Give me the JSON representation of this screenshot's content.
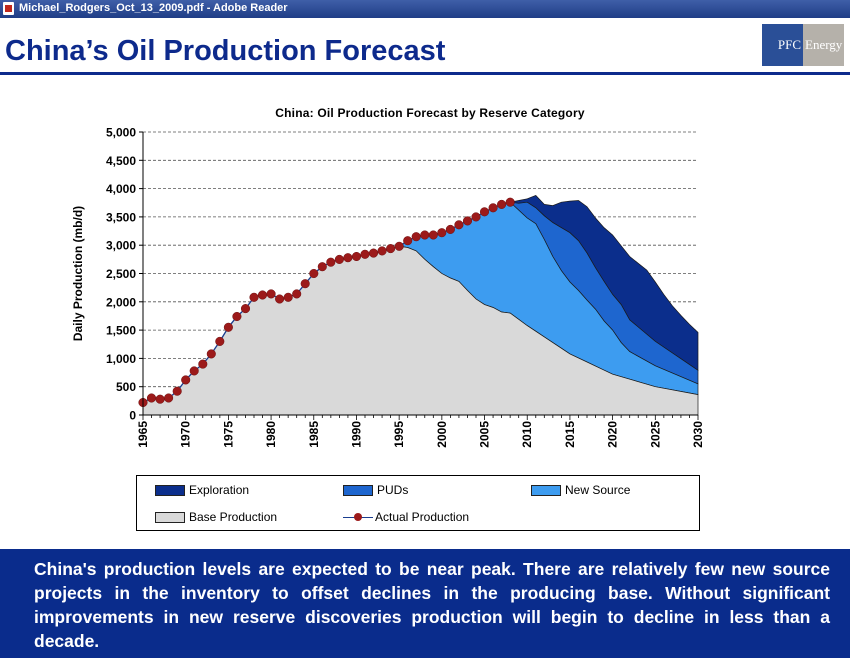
{
  "window": {
    "title": "Michael_Rodgers_Oct_13_2009.pdf - Adobe Reader",
    "icon": "pdf-icon"
  },
  "slide": {
    "title": "China’s Oil Production Forecast",
    "logo": {
      "left": "PFC",
      "right": "Energy"
    },
    "summary": "China's production levels are expected to be near peak. There are relatively few new source projects in the inventory to offset declines in the producing base. Without significant improvements in new reserve discoveries production will begin to decline in less than a decade."
  },
  "chart_data": {
    "type": "area",
    "title": "China: Oil Production Forecast by Reserve Category",
    "ylabel": "Daily Production (mb/d)",
    "xlabel": "",
    "xlim": [
      1965,
      2030
    ],
    "ylim": [
      0,
      5000
    ],
    "yticks": [
      "0",
      "500",
      "1,000",
      "1,500",
      "2,000",
      "2,500",
      "3,000",
      "3,500",
      "4,000",
      "4,500",
      "5,000"
    ],
    "xticks": [
      "1965",
      "1970",
      "1975",
      "1980",
      "1985",
      "1990",
      "1995",
      "2000",
      "2005",
      "2010",
      "2015",
      "2020",
      "2025",
      "2030"
    ],
    "grid": "horizontal dashed",
    "colors": {
      "exploration": "#0b2e8c",
      "puds": "#1e66cf",
      "new_source": "#3d9cf0",
      "base": "#d9d9d9",
      "actual_line": "#1a3d8f",
      "actual_marker": "#9c1a1a"
    },
    "legend": [
      {
        "key": "exploration",
        "label": "Exploration"
      },
      {
        "key": "puds",
        "label": "PUDs"
      },
      {
        "key": "new_source",
        "label": "New Source"
      },
      {
        "key": "base",
        "label": "Base Production"
      },
      {
        "key": "actual",
        "label": "Actual Production"
      }
    ],
    "series": [
      {
        "name": "Base Production",
        "points": [
          [
            1965,
            220
          ],
          [
            1966,
            300
          ],
          [
            1967,
            280
          ],
          [
            1968,
            300
          ],
          [
            1969,
            420
          ],
          [
            1970,
            620
          ],
          [
            1971,
            780
          ],
          [
            1972,
            900
          ],
          [
            1973,
            1080
          ],
          [
            1974,
            1300
          ],
          [
            1975,
            1550
          ],
          [
            1976,
            1740
          ],
          [
            1977,
            1880
          ],
          [
            1978,
            2080
          ],
          [
            1979,
            2120
          ],
          [
            1980,
            2140
          ],
          [
            1981,
            2050
          ],
          [
            1982,
            2080
          ],
          [
            1983,
            2140
          ],
          [
            1984,
            2320
          ],
          [
            1985,
            2500
          ],
          [
            1986,
            2620
          ],
          [
            1987,
            2700
          ],
          [
            1988,
            2750
          ],
          [
            1989,
            2780
          ],
          [
            1990,
            2800
          ],
          [
            1991,
            2840
          ],
          [
            1992,
            2860
          ],
          [
            1993,
            2900
          ],
          [
            1994,
            2940
          ],
          [
            1995,
            2980
          ],
          [
            1996,
            2960
          ],
          [
            1997,
            2900
          ],
          [
            1998,
            2750
          ],
          [
            1999,
            2620
          ],
          [
            2000,
            2500
          ],
          [
            2001,
            2420
          ],
          [
            2002,
            2360
          ],
          [
            2003,
            2200
          ],
          [
            2004,
            2050
          ],
          [
            2005,
            1950
          ],
          [
            2006,
            1900
          ],
          [
            2007,
            1820
          ],
          [
            2008,
            1800
          ],
          [
            2010,
            1580
          ],
          [
            2015,
            1080
          ],
          [
            2020,
            720
          ],
          [
            2025,
            500
          ],
          [
            2030,
            360
          ]
        ]
      },
      {
        "name": "New Source",
        "points": [
          [
            1995,
            2980
          ],
          [
            1996,
            3080
          ],
          [
            1997,
            3150
          ],
          [
            1998,
            3180
          ],
          [
            1999,
            3180
          ],
          [
            2000,
            3220
          ],
          [
            2001,
            3280
          ],
          [
            2002,
            3360
          ],
          [
            2003,
            3430
          ],
          [
            2004,
            3500
          ],
          [
            2005,
            3590
          ],
          [
            2006,
            3660
          ],
          [
            2007,
            3720
          ],
          [
            2008,
            3760
          ],
          [
            2009,
            3620
          ],
          [
            2010,
            3480
          ],
          [
            2011,
            3380
          ],
          [
            2012,
            3100
          ],
          [
            2013,
            2800
          ],
          [
            2014,
            2550
          ],
          [
            2015,
            2350
          ],
          [
            2016,
            2200
          ],
          [
            2017,
            2030
          ],
          [
            2018,
            1870
          ],
          [
            2019,
            1660
          ],
          [
            2020,
            1500
          ],
          [
            2021,
            1280
          ],
          [
            2022,
            1120
          ],
          [
            2025,
            870
          ],
          [
            2030,
            550
          ]
        ]
      },
      {
        "name": "PUDs",
        "points": [
          [
            2008,
            3760
          ],
          [
            2009,
            3740
          ],
          [
            2010,
            3760
          ],
          [
            2011,
            3660
          ],
          [
            2012,
            3520
          ],
          [
            2013,
            3400
          ],
          [
            2014,
            3310
          ],
          [
            2015,
            3220
          ],
          [
            2016,
            3080
          ],
          [
            2017,
            2860
          ],
          [
            2018,
            2600
          ],
          [
            2019,
            2360
          ],
          [
            2020,
            2130
          ],
          [
            2021,
            1950
          ],
          [
            2022,
            1680
          ],
          [
            2025,
            1300
          ],
          [
            2030,
            790
          ]
        ]
      },
      {
        "name": "Exploration",
        "points": [
          [
            2008,
            3760
          ],
          [
            2009,
            3790
          ],
          [
            2010,
            3820
          ],
          [
            2011,
            3880
          ],
          [
            2012,
            3720
          ],
          [
            2013,
            3700
          ],
          [
            2014,
            3760
          ],
          [
            2015,
            3780
          ],
          [
            2016,
            3790
          ],
          [
            2017,
            3680
          ],
          [
            2018,
            3480
          ],
          [
            2019,
            3310
          ],
          [
            2020,
            3180
          ],
          [
            2021,
            2990
          ],
          [
            2022,
            2800
          ],
          [
            2023,
            2680
          ],
          [
            2024,
            2560
          ],
          [
            2025,
            2350
          ],
          [
            2026,
            2130
          ],
          [
            2027,
            1930
          ],
          [
            2028,
            1760
          ],
          [
            2029,
            1600
          ],
          [
            2030,
            1460
          ]
        ]
      },
      {
        "name": "Actual Production",
        "points": [
          [
            1965,
            220
          ],
          [
            1966,
            300
          ],
          [
            1967,
            280
          ],
          [
            1968,
            300
          ],
          [
            1969,
            420
          ],
          [
            1970,
            620
          ],
          [
            1971,
            780
          ],
          [
            1972,
            900
          ],
          [
            1973,
            1080
          ],
          [
            1974,
            1300
          ],
          [
            1975,
            1550
          ],
          [
            1976,
            1740
          ],
          [
            1977,
            1880
          ],
          [
            1978,
            2080
          ],
          [
            1979,
            2120
          ],
          [
            1980,
            2140
          ],
          [
            1981,
            2050
          ],
          [
            1982,
            2080
          ],
          [
            1983,
            2140
          ],
          [
            1984,
            2320
          ],
          [
            1985,
            2500
          ],
          [
            1986,
            2620
          ],
          [
            1987,
            2700
          ],
          [
            1988,
            2750
          ],
          [
            1989,
            2780
          ],
          [
            1990,
            2800
          ],
          [
            1991,
            2840
          ],
          [
            1992,
            2860
          ],
          [
            1993,
            2900
          ],
          [
            1994,
            2940
          ],
          [
            1995,
            2980
          ],
          [
            1996,
            3080
          ],
          [
            1997,
            3150
          ],
          [
            1998,
            3180
          ],
          [
            1999,
            3180
          ],
          [
            2000,
            3220
          ],
          [
            2001,
            3280
          ],
          [
            2002,
            3360
          ],
          [
            2003,
            3430
          ],
          [
            2004,
            3500
          ],
          [
            2005,
            3590
          ],
          [
            2006,
            3660
          ],
          [
            2007,
            3720
          ],
          [
            2008,
            3760
          ]
        ]
      }
    ]
  }
}
